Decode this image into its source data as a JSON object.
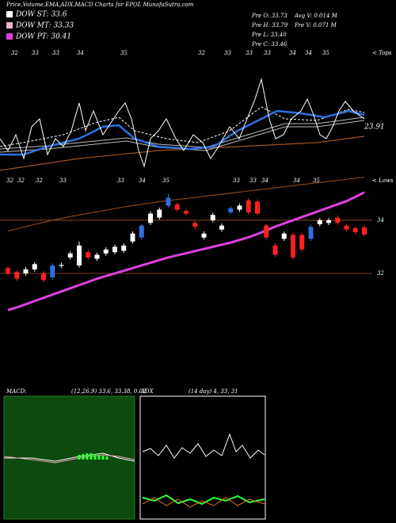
{
  "header": {
    "title": "Price,Volume,EMA,ADX,MACD Charts for EPOL MunafaSutra.com",
    "legend": [
      {
        "label": "DOW ST: 33.6",
        "color": "#ffffff"
      },
      {
        "label": "DOW MT: 33.33",
        "color": "#f0b0d0"
      },
      {
        "label": "DOW PT: 30.41",
        "color": "#e040e0"
      }
    ],
    "stats": [
      "Pre   O: 33.73",
      "Pre   H: 33.79",
      "Pre   L: 33.40",
      "Pre   C: 33.46",
      "Avg  V: 0.014  M",
      "Pre   V: 0.071 M"
    ]
  },
  "chart_data": {
    "type": "candlestick",
    "open": [
      32.2,
      32.05,
      32.0,
      32.15,
      32.0,
      31.85,
      32.28,
      32.6,
      32.3,
      32.8,
      32.55,
      32.75,
      32.8,
      32.85,
      33.2,
      33.35,
      33.9,
      34.1,
      34.55,
      34.6,
      34.35,
      33.9,
      33.35,
      34.0,
      33.65,
      34.3,
      34.4,
      34.75,
      34.7,
      33.8,
      33.05,
      33.3,
      33.45,
      33.45,
      33.3,
      33.85,
      33.9,
      34.1,
      33.8,
      33.7,
      33.73
    ],
    "high": [
      32.28,
      32.13,
      32.23,
      32.43,
      32.08,
      32.38,
      32.4,
      32.83,
      33.2,
      32.88,
      32.78,
      32.98,
      33.08,
      33.13,
      33.58,
      33.88,
      34.33,
      34.48,
      35.0,
      34.68,
      34.43,
      33.98,
      33.58,
      34.28,
      33.88,
      34.53,
      34.63,
      34.83,
      34.78,
      33.88,
      33.13,
      33.58,
      33.53,
      33.53,
      33.83,
      34.08,
      34.08,
      34.18,
      33.88,
      33.78,
      33.79
    ],
    "low": [
      31.92,
      31.72,
      31.92,
      32.07,
      31.67,
      31.77,
      32.2,
      32.52,
      32.22,
      32.52,
      32.47,
      32.67,
      32.72,
      32.77,
      33.12,
      33.27,
      33.82,
      34.02,
      34.47,
      34.32,
      34.17,
      33.67,
      33.27,
      33.92,
      33.57,
      34.22,
      34.32,
      34.22,
      34.17,
      33.27,
      32.62,
      33.22,
      32.52,
      32.82,
      33.22,
      33.77,
      33.82,
      33.82,
      33.57,
      33.47,
      33.4
    ],
    "close": [
      32.0,
      31.8,
      32.15,
      32.35,
      31.75,
      32.3,
      32.32,
      32.75,
      33.05,
      32.6,
      32.7,
      32.9,
      33.0,
      33.05,
      33.5,
      33.8,
      34.25,
      34.4,
      34.85,
      34.4,
      34.25,
      33.75,
      33.5,
      34.2,
      33.8,
      34.45,
      34.55,
      34.3,
      34.25,
      33.35,
      32.7,
      33.5,
      32.6,
      32.9,
      33.75,
      34.0,
      34.0,
      33.9,
      33.65,
      33.55,
      33.46
    ],
    "candle_colors": [
      "#ff2020",
      "#ff2020",
      "#ffffff",
      "#ffffff",
      "#ff2020",
      "#2f6fe0",
      "#ffffff",
      "#ffffff",
      "#ffffff",
      "#ff2020",
      "#ffffff",
      "#ffffff",
      "#ffffff",
      "#ffffff",
      "#ffffff",
      "#2f6fe0",
      "#ffffff",
      "#ffffff",
      "#2f6fe0",
      "#ff2020",
      "#ff2020",
      "#ff2020",
      "#ffffff",
      "#ffffff",
      "#ffffff",
      "#2f6fe0",
      "#ffffff",
      "#ff2020",
      "#ff2020",
      "#ff2020",
      "#ff2020",
      "#ffffff",
      "#ff2020",
      "#ff2020",
      "#2f6fe0",
      "#ffffff",
      "#ffffff",
      "#ff2020",
      "#ff2020",
      "#ff2020",
      "#ff2020"
    ],
    "series": [
      {
        "color": "#e040e0",
        "values": [
          30.62,
          30.72,
          30.84,
          30.96,
          31.08,
          31.2,
          31.32,
          31.44,
          31.56,
          31.68,
          31.8,
          31.9,
          32.0,
          32.1,
          32.2,
          32.3,
          32.4,
          32.5,
          32.6,
          32.68,
          32.76,
          32.84,
          32.92,
          33.0,
          33.08,
          33.16,
          33.26,
          33.36,
          33.48,
          33.62,
          33.76,
          33.88,
          34.0,
          34.12,
          34.24,
          34.36,
          34.48,
          34.6,
          34.72,
          34.88,
          35.05
        ]
      },
      {
        "color": "#a0521e",
        "values": [
          33.6,
          33.68,
          33.76,
          33.84,
          33.92,
          34.0,
          34.07,
          34.14,
          34.2,
          34.26,
          34.32,
          34.38,
          34.44,
          34.5,
          34.55,
          34.6,
          34.65,
          34.7,
          34.74,
          34.78,
          34.82,
          34.86,
          34.9,
          34.94,
          34.98,
          35.02,
          35.06,
          35.1,
          35.14,
          35.18,
          35.22,
          35.26,
          35.3,
          35.34,
          35.38,
          35.42,
          35.46,
          35.5,
          35.54,
          35.58,
          35.62
        ]
      }
    ],
    "ylim": [
      30.36,
      35.43
    ],
    "yticks": [
      32,
      34
    ],
    "grid": true,
    "grid_color": "#a0521e",
    "tops": [
      "32",
      "33",
      "33",
      "34",
      "35",
      "32",
      "33",
      "33",
      "33",
      "34",
      "34",
      "35"
    ],
    "tops_label": "< Tops",
    "lows": [
      "32",
      "32",
      "32",
      "33",
      "33",
      "34",
      "35",
      "33",
      "33",
      "34",
      "34",
      "35"
    ],
    "lows_label": "< Lows",
    "annotation": "23.91"
  },
  "macd": {
    "label": "MACD:",
    "params": "(12,26,9) 33.6, 33.38, 0.02"
  },
  "adx": {
    "label": "ADX",
    "params": "(14  day) 4,  33,  31"
  }
}
